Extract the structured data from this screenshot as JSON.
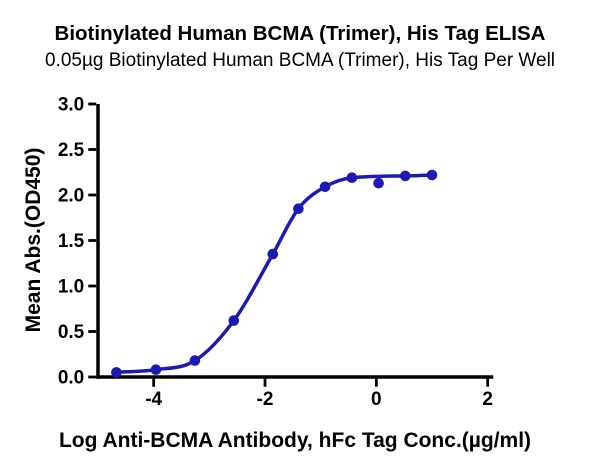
{
  "chart_data": {
    "type": "line",
    "title": "Biotinylated Human BCMA (Trimer), His Tag ELISA",
    "subtitle": "0.05µg Biotinylated Human BCMA (Trimer), His Tag Per Well",
    "xlabel": "Log Anti-BCMA Antibody, hFc Tag Conc.(µg/ml)",
    "ylabel": "Mean Abs.(OD450)",
    "xlim": [
      -5.0,
      2.1
    ],
    "ylim": [
      0,
      3.0
    ],
    "x_ticks": [
      -4,
      -2,
      0,
      2
    ],
    "x_tick_labels": [
      "-4",
      "-2",
      "0",
      "2"
    ],
    "y_ticks": [
      0,
      0.5,
      1,
      1.5,
      2,
      2.5,
      3
    ],
    "y_tick_labels": [
      "0.0",
      "0.5",
      "1.0",
      "1.5",
      "2.0",
      "2.5",
      "3.0"
    ],
    "grid": false,
    "legend": "none",
    "axis_color": "#000000",
    "series": [
      {
        "name": "Anti-BCMA Antibody, hFc Tag",
        "color": "#1b1bb4",
        "marker": "circle",
        "curve": "4PL sigmoid fit",
        "x": [
          -4.67,
          -3.96,
          -3.26,
          -2.56,
          -1.86,
          -1.4,
          -0.92,
          -0.44,
          0.04,
          0.52,
          1.0
        ],
        "y": [
          0.05,
          0.08,
          0.18,
          0.62,
          1.35,
          1.85,
          2.09,
          2.19,
          2.13,
          2.21,
          2.22
        ],
        "points_off_fit_curve": [
          8
        ]
      }
    ]
  }
}
